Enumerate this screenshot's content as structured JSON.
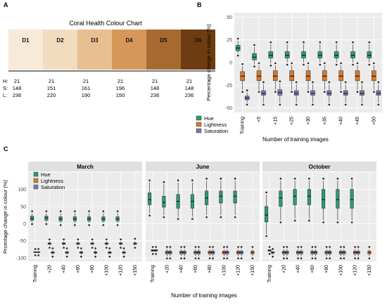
{
  "panel_labels": [
    "A",
    "B",
    "C"
  ],
  "colors": {
    "hue": "#2e9a72",
    "lightness": "#d8782c",
    "saturation": "#7a7ab0",
    "facet_strip": "#e0e0e0",
    "panel_bg": "#ebebeb",
    "grid": "#ffffff"
  },
  "panelA": {
    "title": "Coral Health Colour Chart",
    "swatches": [
      {
        "label": "D1",
        "color": "#f8ead8"
      },
      {
        "label": "D2",
        "color": "#f2dcc0"
      },
      {
        "label": "D3",
        "color": "#e8bf90"
      },
      {
        "label": "D4",
        "color": "#d6985a"
      },
      {
        "label": "D5",
        "color": "#a66a30"
      },
      {
        "label": "D6",
        "color": "#6e3c10"
      }
    ],
    "row_labels": [
      "H:",
      "S:",
      "L:"
    ],
    "hsl": [
      {
        "H": "21",
        "S": "148",
        "L": "236"
      },
      {
        "H": "21",
        "S": "151",
        "L": "220"
      },
      {
        "H": "21",
        "S": "161",
        "L": "190"
      },
      {
        "H": "21",
        "S": "196",
        "L": "150"
      },
      {
        "H": "21",
        "S": "148",
        "L": "236"
      },
      {
        "H": "21",
        "S": "148",
        "L": "236"
      }
    ]
  },
  "chart_data": [
    {
      "type": "box",
      "panel": "B",
      "xlabel": "Number of training images",
      "ylabel": "Percentage change in colour (%)",
      "ylim": [
        -55,
        55
      ],
      "yticks": [
        50,
        25,
        0,
        -25,
        -50
      ],
      "categories": [
        "Training",
        "+5",
        "+15",
        "+25",
        "+30",
        "+35",
        "+40",
        "+45",
        "+50"
      ],
      "legend": [
        "Hue",
        "Lightness",
        "Saturation"
      ],
      "series": [
        {
          "name": "Hue",
          "box": [
            [
              10,
              13,
              16,
              19,
              24
            ],
            [
              -2,
              3,
              6,
              10,
              17
            ],
            [
              -1,
              5,
              8,
              12,
              20
            ],
            [
              0,
              5,
              8,
              12,
              20
            ],
            [
              0,
              5,
              8,
              12,
              20
            ],
            [
              0,
              5,
              8,
              12,
              20
            ],
            [
              0,
              5,
              8,
              12,
              20
            ],
            [
              0,
              5,
              8,
              12,
              20
            ],
            [
              0,
              5,
              8,
              12,
              20
            ]
          ]
        },
        {
          "name": "Lightness",
          "box": [
            [
              -30,
              -20,
              -15,
              -10,
              -4
            ],
            [
              -30,
              -20,
              -15,
              -9,
              -3
            ],
            [
              -30,
              -20,
              -15,
              -9,
              -3
            ],
            [
              -30,
              -20,
              -15,
              -9,
              -3
            ],
            [
              -30,
              -20,
              -15,
              -9,
              -3
            ],
            [
              -30,
              -20,
              -15,
              -9,
              -3
            ],
            [
              -30,
              -20,
              -15,
              -9,
              -3
            ],
            [
              -30,
              -20,
              -15,
              -9,
              -3
            ],
            [
              -30,
              -20,
              -15,
              -9,
              -3
            ]
          ]
        },
        {
          "name": "Saturation",
          "box": [
            [
              -44,
              -41,
              -39,
              -37,
              -33
            ],
            [
              -44,
              -36,
              -34,
              -31,
              -24
            ],
            [
              -44,
              -36,
              -33,
              -30,
              -23
            ],
            [
              -44,
              -36,
              -34,
              -31,
              -24
            ],
            [
              -44,
              -36,
              -34,
              -31,
              -24
            ],
            [
              -44,
              -36,
              -34,
              -31,
              -24
            ],
            [
              -44,
              -36,
              -34,
              -31,
              -24
            ],
            [
              -44,
              -36,
              -34,
              -31,
              -24
            ],
            [
              -44,
              -36,
              -34,
              -31,
              -24
            ]
          ]
        }
      ]
    },
    {
      "type": "box",
      "panel": "C",
      "xlabel": "Number of training images",
      "ylabel": "Prcentage change in colour (%)",
      "ylim": [
        -110,
        150
      ],
      "yticks": [
        100,
        50,
        0,
        -50,
        -100
      ],
      "categories": [
        "Training",
        "+20",
        "+40",
        "+60",
        "+80",
        "+100",
        "+120",
        "+150"
      ],
      "legend": [
        "Hue",
        "Lightness",
        "Saturation"
      ],
      "facets": [
        {
          "name": "March",
          "hue": [
            [
              5,
              10,
              15,
              22,
              30
            ],
            [
              5,
              10,
              17,
              22,
              30
            ],
            [
              2,
              8,
              14,
              20,
              30
            ],
            [
              2,
              8,
              14,
              20,
              30
            ],
            [
              2,
              8,
              14,
              20,
              30
            ],
            [
              2,
              8,
              14,
              20,
              30
            ],
            [
              2,
              8,
              14,
              20,
              30
            ],
            null
          ],
          "lightness": [
            [
              -86,
              -84,
              -83,
              -82,
              -80
            ],
            [
              -64,
              -60,
              -58,
              -56,
              -52
            ],
            [
              -64,
              -60,
              -58,
              -56,
              -52
            ],
            [
              -64,
              -60,
              -58,
              -56,
              -52
            ],
            [
              -64,
              -60,
              -58,
              -56,
              -52
            ],
            [
              -64,
              -60,
              -58,
              -56,
              -52
            ],
            [
              -64,
              -60,
              -58,
              -56,
              -52
            ],
            [
              -64,
              -60,
              -58,
              -56,
              -50
            ]
          ],
          "saturation": [
            [
              -86,
              -84,
              -83,
              -82,
              -80
            ],
            [
              -90,
              -86,
              -84,
              -82,
              -78
            ],
            [
              -90,
              -86,
              -84,
              -82,
              -78
            ],
            [
              -90,
              -86,
              -84,
              -82,
              -78
            ],
            [
              -90,
              -86,
              -84,
              -82,
              -78
            ],
            [
              -90,
              -86,
              -84,
              -82,
              -78
            ],
            [
              -90,
              -86,
              -84,
              -82,
              -78
            ],
            null
          ]
        },
        {
          "name": "June",
          "hue": [
            [
              30,
              55,
              70,
              90,
              120
            ],
            [
              25,
              48,
              62,
              80,
              115
            ],
            [
              20,
              45,
              65,
              85,
              120
            ],
            [
              20,
              45,
              65,
              85,
              120
            ],
            [
              25,
              55,
              75,
              95,
              125
            ],
            [
              25,
              60,
              80,
              95,
              125
            ],
            [
              25,
              60,
              80,
              95,
              125
            ],
            null
          ],
          "lightness": [
            [
              -82,
              -80,
              -78,
              -76,
              -74
            ],
            [
              -95,
              -88,
              -84,
              -80,
              -74
            ],
            [
              -95,
              -88,
              -84,
              -80,
              -74
            ],
            [
              -95,
              -88,
              -84,
              -80,
              -74
            ],
            [
              -95,
              -88,
              -84,
              -80,
              -74
            ],
            [
              -95,
              -88,
              -84,
              -80,
              -74
            ],
            [
              -95,
              -88,
              -84,
              -80,
              -74
            ],
            [
              -95,
              -88,
              -84,
              -80,
              -74
            ]
          ],
          "saturation": [
            [
              -82,
              -80,
              -78,
              -76,
              -74
            ],
            [
              -95,
              -88,
              -84,
              -80,
              -74
            ],
            [
              -95,
              -88,
              -84,
              -80,
              -74
            ],
            [
              -95,
              -88,
              -84,
              -80,
              -74
            ],
            [
              -95,
              -88,
              -84,
              -80,
              -74
            ],
            [
              -95,
              -88,
              -84,
              -80,
              -74
            ],
            [
              -95,
              -88,
              -84,
              -80,
              -74
            ],
            null
          ]
        },
        {
          "name": "October",
          "hue": [
            [
              -30,
              5,
              25,
              50,
              85
            ],
            [
              10,
              50,
              75,
              95,
              125
            ],
            [
              15,
              55,
              80,
              100,
              125
            ],
            [
              15,
              55,
              80,
              100,
              125
            ],
            [
              10,
              45,
              70,
              100,
              125
            ],
            [
              10,
              45,
              70,
              100,
              125
            ],
            [
              10,
              45,
              70,
              100,
              125
            ],
            null
          ],
          "lightness": [
            [
              -82,
              -80,
              -78,
              -76,
              -74
            ],
            [
              -95,
              -88,
              -84,
              -80,
              -74
            ],
            [
              -95,
              -88,
              -84,
              -80,
              -74
            ],
            [
              -95,
              -88,
              -84,
              -80,
              -74
            ],
            [
              -95,
              -88,
              -84,
              -80,
              -74
            ],
            [
              -95,
              -88,
              -84,
              -80,
              -74
            ],
            [
              -95,
              -88,
              -84,
              -80,
              -74
            ],
            [
              -95,
              -88,
              -84,
              -80,
              -74
            ]
          ],
          "saturation": [
            [
              -90,
              -86,
              -84,
              -82,
              -80
            ],
            [
              -95,
              -88,
              -84,
              -80,
              -74
            ],
            [
              -95,
              -88,
              -84,
              -80,
              -74
            ],
            [
              -95,
              -88,
              -84,
              -80,
              -74
            ],
            [
              -95,
              -88,
              -84,
              -80,
              -74
            ],
            [
              -95,
              -88,
              -84,
              -80,
              -74
            ],
            [
              -95,
              -88,
              -84,
              -80,
              -74
            ],
            null
          ]
        }
      ]
    }
  ]
}
